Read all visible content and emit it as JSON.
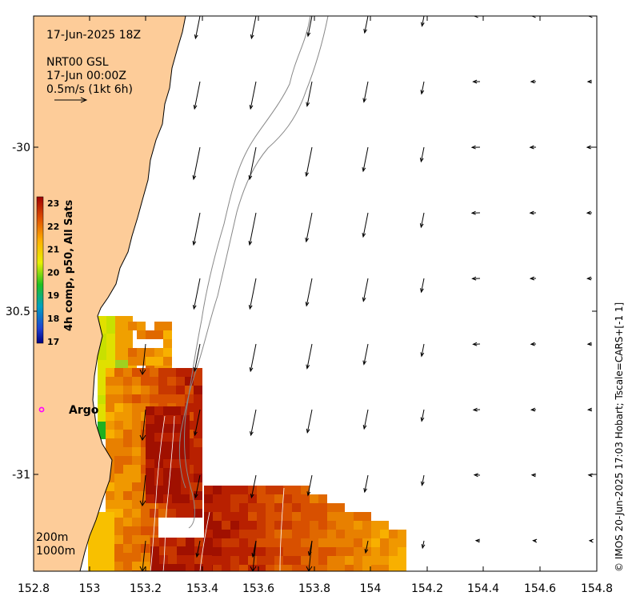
{
  "header": {
    "datetime": "17-Jun-2025 18Z",
    "product": "NRT00 GSL",
    "current_time": "17-Jun 00:00Z",
    "scale_text": "0.5m/s (1kt 6h)"
  },
  "axes": {
    "x_ticks": [
      "152.8",
      "153",
      "153.2",
      "153.4",
      "153.6",
      "153.8",
      "154",
      "154.2",
      "154.4",
      "154.6",
      "154.8"
    ],
    "y_ticks": [
      "-30",
      "30.5",
      "-31"
    ],
    "lon_range": [
      152.8,
      154.8
    ],
    "lat_range": [
      -29.55,
      -31.3
    ]
  },
  "colorbar": {
    "label": "4h comp, p50, All Sats",
    "ticks": [
      "23",
      "22",
      "21",
      "20",
      "19",
      "18",
      "17"
    ],
    "range": [
      17,
      23
    ]
  },
  "marker": {
    "label": "Argo",
    "color": "#ff00ff"
  },
  "contours": {
    "labels": [
      "200m",
      "1000m"
    ]
  },
  "credit": "© IMOS 20-Jun-2025 17:03 Hobart; Tscale=CARS+[-1 1]",
  "colors": {
    "land": "#fdcc99",
    "contour": "#888888",
    "sst_hot": "#b01800",
    "sst_warm": "#f0a000"
  }
}
